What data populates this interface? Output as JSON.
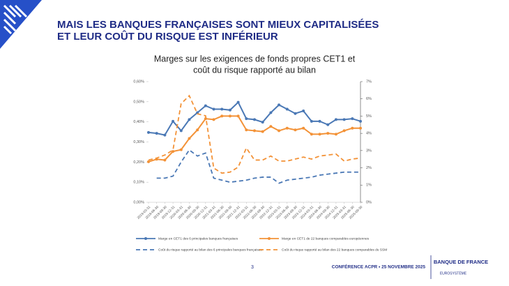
{
  "slide": {
    "title_lines": [
      "MAIS LES BANQUES FRANÇAISES SONT MIEUX CAPITALISÉES",
      "ET LEUR COÛT DU RISQUE EST INFÉRIEUR"
    ],
    "page_number": "3",
    "footer": "CONFÉRENCE ACPR • 25 NOVEMBRE 2025",
    "logo": "BANQUE DE FRANCE",
    "logo_sub": "EUROSYSTÈME"
  },
  "chart_data": {
    "type": "line",
    "title": [
      "Marges sur les exigences de fonds propres CET1 et",
      "coût du risque rapporté au bilan"
    ],
    "categories": [
      "2019-03-31",
      "2019-06-30",
      "2019-09-30",
      "2019-12-31",
      "2020-03-31",
      "2020-06-30",
      "2020-09-30",
      "2020-12-31",
      "2021-03-31",
      "2021-06-30",
      "2021-09-30",
      "2021-12-31",
      "2022-03-31",
      "2022-06-30",
      "2022-09-30",
      "2022-12-31",
      "2023-03-31",
      "2023-06-30",
      "2023-09-30",
      "2023-12-31",
      "2024-03-31",
      "2024-06-30",
      "2024-09-30",
      "2024-12-31",
      "2025-03-31",
      "2025-06-30",
      "2025-09-30"
    ],
    "series": [
      {
        "name": "Marge en CET1 des 6 principales banques françaises",
        "color": "#4a78b5",
        "style": "solid",
        "marker": "circle",
        "axis": "y2",
        "values": [
          4.05,
          4.0,
          3.9,
          4.7,
          4.15,
          4.8,
          5.2,
          5.6,
          5.4,
          5.4,
          5.35,
          5.8,
          4.85,
          4.8,
          4.65,
          5.2,
          5.65,
          5.4,
          5.15,
          5.3,
          4.7,
          4.7,
          4.5,
          4.8,
          4.8,
          4.85,
          4.7
        ]
      },
      {
        "name": "Marge en CET1 de 22 banques comparables européennes",
        "color": "#f39237",
        "style": "solid",
        "marker": "circle",
        "axis": "y2",
        "values": [
          2.35,
          2.5,
          2.45,
          2.95,
          3.05,
          3.7,
          4.2,
          4.85,
          4.8,
          5.0,
          5.0,
          5.0,
          4.2,
          4.15,
          4.1,
          4.4,
          4.15,
          4.3,
          4.2,
          4.3,
          3.95,
          3.95,
          4.0,
          3.95,
          4.15,
          4.3,
          4.3
        ]
      },
      {
        "name": "Coût du risque rapporté au bilan des 6 principales banques françaises",
        "color": "#4a78b5",
        "style": "dashed",
        "marker": "none",
        "values": [
          null,
          0.12,
          0.12,
          0.13,
          0.2,
          0.26,
          0.23,
          0.245,
          0.12,
          0.11,
          0.1,
          0.105,
          0.11,
          0.12,
          0.125,
          0.125,
          0.095,
          0.11,
          0.115,
          0.12,
          0.125,
          0.135,
          0.14,
          0.145,
          0.15,
          0.15,
          0.15
        ]
      },
      {
        "name": "Coût du risque rapporté au bilan des 22 banques comparables du SSM",
        "color": "#f39237",
        "style": "dashed",
        "marker": "none",
        "values": [
          0.21,
          0.22,
          0.235,
          0.26,
          0.49,
          0.53,
          0.44,
          0.43,
          0.17,
          0.145,
          0.15,
          0.175,
          0.27,
          0.21,
          0.21,
          0.23,
          0.205,
          0.205,
          0.215,
          0.225,
          0.215,
          0.23,
          0.235,
          0.24,
          0.205,
          0.215,
          0.22
        ]
      }
    ],
    "ylim": [
      0,
      0.6
    ],
    "yticks": [
      {
        "value": 0,
        "label": "0,00%"
      },
      {
        "value": 0.1,
        "label": "0,10%"
      },
      {
        "value": 0.2,
        "label": "0,20%"
      },
      {
        "value": 0.3,
        "label": "0,30%"
      },
      {
        "value": 0.4,
        "label": "0,40%"
      },
      {
        "value": 0.5,
        "label": "0,50%"
      },
      {
        "value": 0.6,
        "label": "0,60%"
      }
    ],
    "y2lim": [
      0,
      7
    ],
    "y2ticks": [
      {
        "value": 0,
        "label": "0%"
      },
      {
        "value": 1,
        "label": "1%"
      },
      {
        "value": 2,
        "label": "2%"
      },
      {
        "value": 3,
        "label": "3%"
      },
      {
        "value": 4,
        "label": "4%"
      },
      {
        "value": 5,
        "label": "5%"
      },
      {
        "value": 6,
        "label": "6%"
      },
      {
        "value": 7,
        "label": "7%"
      }
    ],
    "grid": false,
    "legend": "bottom"
  }
}
